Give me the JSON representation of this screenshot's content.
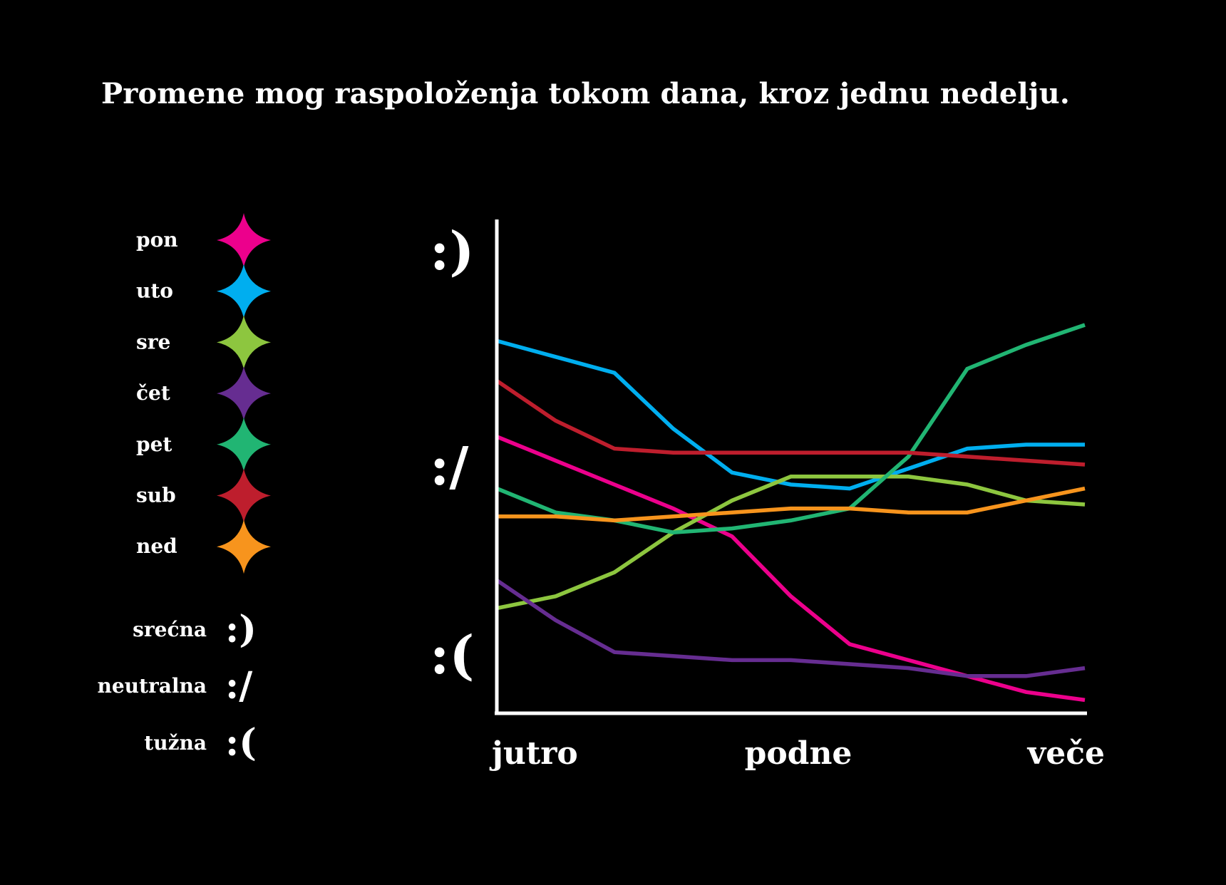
{
  "title": "Promene mog raspoloženja tokom dana, kroz jednu nedelju.",
  "chart_data": {
    "type": "line",
    "title": "Promene mog raspoloženja tokom dana, kroz jednu nedelju.",
    "x_tick_labels": [
      "jutro",
      "podne",
      "veče"
    ],
    "y_tick_labels": [
      ":(",
      ":/",
      ":)"
    ],
    "xlim": [
      0,
      10
    ],
    "ylim": [
      0,
      10
    ],
    "x": [
      0,
      1,
      2,
      3,
      4,
      5,
      6,
      7,
      8,
      9,
      10
    ],
    "series": [
      {
        "name": "pon",
        "color": "#EC008C",
        "values": [
          6.2,
          5.6,
          5.0,
          4.4,
          3.7,
          2.2,
          1.0,
          0.6,
          0.2,
          -0.2,
          -0.4
        ]
      },
      {
        "name": "uto",
        "color": "#00AEEF",
        "values": [
          8.6,
          8.2,
          7.8,
          6.4,
          5.3,
          5.0,
          4.9,
          5.4,
          5.9,
          6.0,
          6.0
        ]
      },
      {
        "name": "sre",
        "color": "#8DC63F",
        "values": [
          1.9,
          2.2,
          2.8,
          3.8,
          4.6,
          5.2,
          5.2,
          5.2,
          5.0,
          4.6,
          4.5
        ]
      },
      {
        "name": "čet",
        "color": "#662D91",
        "values": [
          2.6,
          1.6,
          0.8,
          0.7,
          0.6,
          0.6,
          0.5,
          0.4,
          0.2,
          0.2,
          0.4
        ]
      },
      {
        "name": "pet",
        "color": "#21B573",
        "values": [
          4.9,
          4.3,
          4.1,
          3.8,
          3.9,
          4.1,
          4.4,
          5.7,
          7.9,
          8.5,
          9.0
        ]
      },
      {
        "name": "sub",
        "color": "#BE1E2D",
        "values": [
          7.6,
          6.6,
          5.9,
          5.8,
          5.8,
          5.8,
          5.8,
          5.8,
          5.7,
          5.6,
          5.5
        ]
      },
      {
        "name": "ned",
        "color": "#F7941D",
        "values": [
          4.2,
          4.2,
          4.1,
          4.2,
          4.3,
          4.4,
          4.4,
          4.3,
          4.3,
          4.6,
          4.9
        ]
      }
    ],
    "legend_position": "left",
    "grid": false
  },
  "mood_legend": [
    {
      "label": "srećna",
      "face": ":)"
    },
    {
      "label": "neutralna",
      "face": ":/"
    },
    {
      "label": "tužna",
      "face": ":("
    }
  ],
  "colors": {
    "background": "#000000",
    "axis": "#FFFFFF",
    "text": "#FFFFFF"
  }
}
